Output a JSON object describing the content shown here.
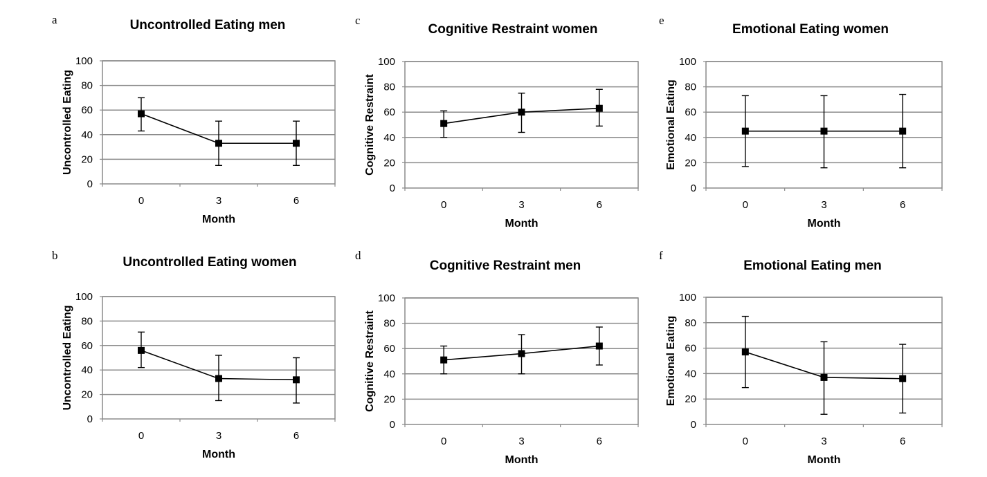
{
  "chart_data": [
    {
      "type": "line",
      "panel_label": "a",
      "title": "Uncontrolled Eating men",
      "xlabel": "Month",
      "ylabel": "Uncontrolled Eating",
      "categories": [
        "0",
        "3",
        "6"
      ],
      "ylim": [
        0,
        100
      ],
      "yticks": [
        "0",
        "20",
        "40",
        "60",
        "80",
        "100"
      ],
      "grid": true,
      "series": [
        {
          "values": [
            57,
            33,
            33
          ],
          "error_low": [
            43,
            15,
            15
          ],
          "error_high": [
            70,
            51,
            51
          ]
        }
      ]
    },
    {
      "type": "line",
      "panel_label": "b",
      "title": "Uncontrolled Eating women",
      "xlabel": "Month",
      "ylabel": "Uncontrolled Eating",
      "categories": [
        "0",
        "3",
        "6"
      ],
      "ylim": [
        0,
        100
      ],
      "yticks": [
        "0",
        "20",
        "40",
        "60",
        "80",
        "100"
      ],
      "grid": true,
      "series": [
        {
          "values": [
            56,
            33,
            32
          ],
          "error_low": [
            42,
            15,
            13
          ],
          "error_high": [
            71,
            52,
            50
          ]
        }
      ]
    },
    {
      "type": "line",
      "panel_label": "c",
      "title": "Cognitive Restraint women",
      "xlabel": "Month",
      "ylabel": "Cognitive Restraint",
      "categories": [
        "0",
        "3",
        "6"
      ],
      "ylim": [
        0,
        100
      ],
      "yticks": [
        "0",
        "20",
        "40",
        "60",
        "80",
        "100"
      ],
      "grid": true,
      "series": [
        {
          "values": [
            51,
            60,
            63
          ],
          "error_low": [
            40,
            44,
            49
          ],
          "error_high": [
            61,
            75,
            78
          ]
        }
      ]
    },
    {
      "type": "line",
      "panel_label": "d",
      "title": "Cognitive Restraint men",
      "xlabel": "Month",
      "ylabel": "Cognitive Restraint",
      "categories": [
        "0",
        "3",
        "6"
      ],
      "ylim": [
        0,
        100
      ],
      "yticks": [
        "0",
        "20",
        "40",
        "60",
        "80",
        "100"
      ],
      "grid": true,
      "series": [
        {
          "values": [
            51,
            56,
            62
          ],
          "error_low": [
            40,
            40,
            47
          ],
          "error_high": [
            62,
            71,
            77
          ]
        }
      ]
    },
    {
      "type": "line",
      "panel_label": "e",
      "title": "Emotional Eating women",
      "xlabel": "Month",
      "ylabel": "Emotional Eating",
      "categories": [
        "0",
        "3",
        "6"
      ],
      "ylim": [
        0,
        100
      ],
      "yticks": [
        "0",
        "20",
        "40",
        "60",
        "80",
        "100"
      ],
      "grid": true,
      "series": [
        {
          "values": [
            45,
            45,
            45
          ],
          "error_low": [
            17,
            16,
            16
          ],
          "error_high": [
            73,
            73,
            74
          ]
        }
      ]
    },
    {
      "type": "line",
      "panel_label": "f",
      "title": "Emotional Eating men",
      "xlabel": "Month",
      "ylabel": "Emotional Eating",
      "categories": [
        "0",
        "3",
        "6"
      ],
      "ylim": [
        0,
        100
      ],
      "yticks": [
        "0",
        "20",
        "40",
        "60",
        "80",
        "100"
      ],
      "grid": true,
      "series": [
        {
          "values": [
            57,
            37,
            36
          ],
          "error_low": [
            29,
            8,
            9
          ],
          "error_high": [
            85,
            65,
            63
          ]
        }
      ]
    }
  ]
}
